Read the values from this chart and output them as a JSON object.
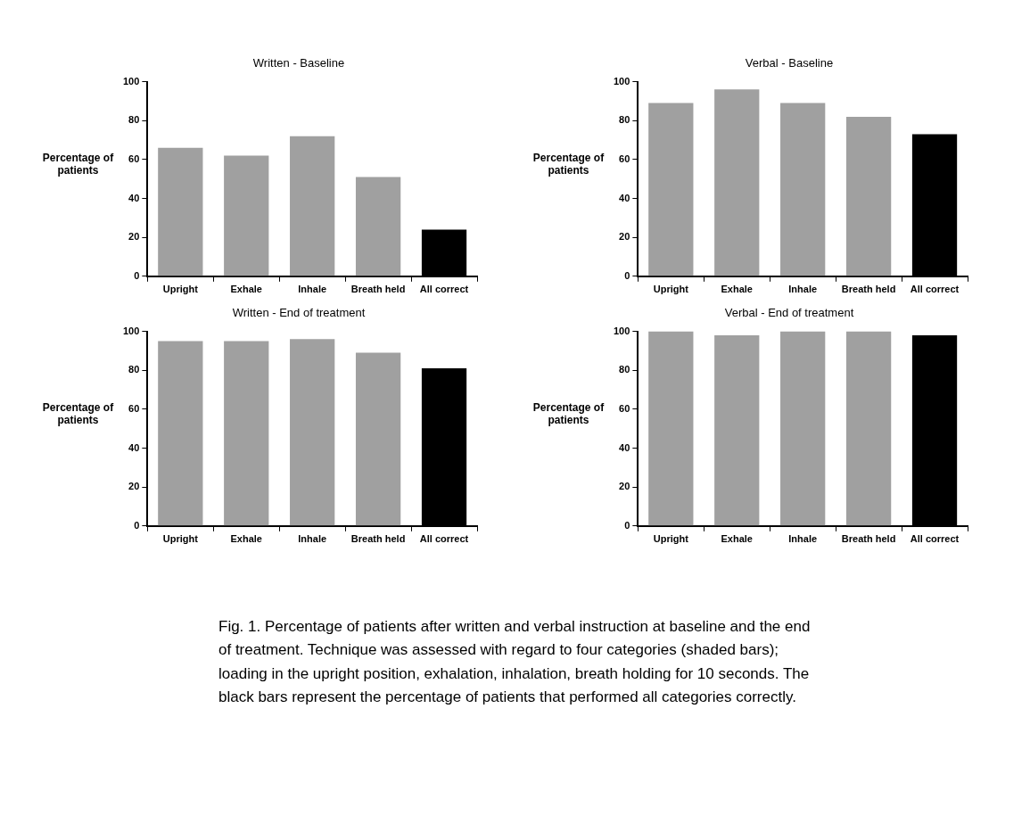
{
  "chart_data": [
    {
      "type": "bar",
      "title": "Written - Baseline",
      "ylabel": "Percentage of patients",
      "categories": [
        "Upright",
        "Exhale",
        "Inhale",
        "Breath held",
        "All correct"
      ],
      "values": [
        66,
        62,
        72,
        51,
        24
      ],
      "colors": [
        "#a0a0a0",
        "#a0a0a0",
        "#a0a0a0",
        "#a0a0a0",
        "#000000"
      ],
      "ylim": [
        0,
        100
      ],
      "yticks": [
        0,
        20,
        40,
        60,
        80,
        100
      ],
      "grid": false,
      "legend": false
    },
    {
      "type": "bar",
      "title": "Verbal - Baseline",
      "ylabel": "Percentage of patients",
      "categories": [
        "Upright",
        "Exhale",
        "Inhale",
        "Breath held",
        "All correct"
      ],
      "values": [
        89,
        96,
        89,
        82,
        73
      ],
      "colors": [
        "#a0a0a0",
        "#a0a0a0",
        "#a0a0a0",
        "#a0a0a0",
        "#000000"
      ],
      "ylim": [
        0,
        100
      ],
      "yticks": [
        0,
        20,
        40,
        60,
        80,
        100
      ],
      "grid": false,
      "legend": false
    },
    {
      "type": "bar",
      "title": "Written - End of treatment",
      "ylabel": "Percentage of patients",
      "categories": [
        "Upright",
        "Exhale",
        "Inhale",
        "Breath held",
        "All correct"
      ],
      "values": [
        95,
        95,
        96,
        89,
        81
      ],
      "colors": [
        "#a0a0a0",
        "#a0a0a0",
        "#a0a0a0",
        "#a0a0a0",
        "#000000"
      ],
      "ylim": [
        0,
        100
      ],
      "yticks": [
        0,
        20,
        40,
        60,
        80,
        100
      ],
      "grid": false,
      "legend": false
    },
    {
      "type": "bar",
      "title": "Verbal - End of treatment",
      "ylabel": "Percentage of patients",
      "categories": [
        "Upright",
        "Exhale",
        "Inhale",
        "Breath held",
        "All correct"
      ],
      "values": [
        100,
        98,
        100,
        100,
        98
      ],
      "colors": [
        "#a0a0a0",
        "#a0a0a0",
        "#a0a0a0",
        "#a0a0a0",
        "#000000"
      ],
      "ylim": [
        0,
        100
      ],
      "yticks": [
        0,
        20,
        40,
        60,
        80,
        100
      ],
      "grid": false,
      "legend": false,
      "annotations": [
        "Fig. 1. Percentage of patients after written and verbal instruction at baseline and the end of treatment. Technique was assessed with regard to four categories (shaded bars); loading in the upright position, exhalation, inhalation, breath holding for 10 seconds. The black bars represent the percentage of patients that performed all categories correctly."
      ]
    }
  ]
}
